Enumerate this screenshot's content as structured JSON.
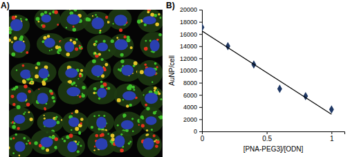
{
  "panel_labels": [
    "A)",
    "B)"
  ],
  "chart_data": {
    "type": "scatter",
    "x_label": "[PNA-PEG3]/[ODN]",
    "y_label": "AuNP/cell",
    "series": [
      {
        "type": "scatter",
        "color": "#1f3864",
        "marker": "diamond",
        "x": [
          0,
          0.2,
          0.4,
          0.6,
          0.8,
          1
        ],
        "values": [
          17100,
          14000,
          11000,
          7000,
          5800,
          3600
        ]
      },
      {
        "type": "line",
        "color": "#000000",
        "line_style": "solid",
        "x": [
          0,
          1
        ],
        "values": [
          16500,
          2800
        ]
      }
    ],
    "xlim": [
      0,
      1.1
    ],
    "xticks": [
      0,
      0.5,
      1
    ],
    "ylim": [
      0,
      20000
    ],
    "yticks": [
      0,
      2000,
      4000,
      6000,
      8000,
      10000,
      12000,
      14000,
      16000,
      18000,
      20000
    ],
    "grid": false
  }
}
